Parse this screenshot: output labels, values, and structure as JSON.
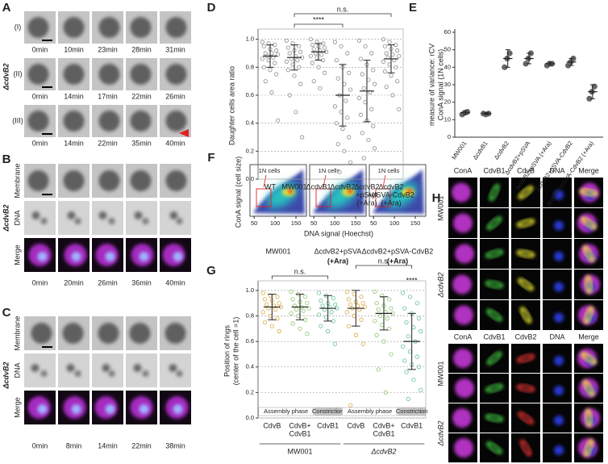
{
  "panels": {
    "A": {
      "label": "A",
      "strain": "ΔcdvB2",
      "rows": [
        {
          "label": "(I)",
          "times": [
            "0min",
            "10min",
            "23min",
            "28min",
            "31min"
          ]
        },
        {
          "label": "(II)",
          "times": [
            "0min",
            "14min",
            "17min",
            "22min",
            "26min"
          ]
        },
        {
          "label": "(III)",
          "times": [
            "0min",
            "14min",
            "22min",
            "35min",
            "40min"
          ]
        }
      ]
    },
    "B": {
      "label": "B",
      "strain": "ΔcdvB2",
      "channels": [
        "Membrane",
        "DNA",
        "Merge"
      ],
      "times": [
        "0min",
        "20min",
        "26min",
        "36min",
        "40min"
      ]
    },
    "C": {
      "label": "C",
      "strain": "ΔcdvB2",
      "channels": [
        "Membrane",
        "DNA",
        "Merge"
      ],
      "times": [
        "0min",
        "8min",
        "14min",
        "22min",
        "38min"
      ]
    },
    "F": {
      "label": "F",
      "ylabel": "ConA signal (cell size)",
      "xlabel": "DNA signal (Hoechst)",
      "xlim": [
        40,
        175
      ],
      "xticks": [
        50,
        100,
        150
      ],
      "gate_label": "1N cells",
      "plots": [
        {
          "name": "MW001"
        },
        {
          "name": "ΔcdvB2+pSVA",
          "note": "(+Ara)"
        },
        {
          "name": "ΔcdvB2+pSVA-CdvB2",
          "note": "(+Ara)"
        }
      ]
    },
    "H": {
      "label": "H",
      "blocks": [
        {
          "channels": [
            "ConA",
            "CdvB1",
            "CdvB",
            "DNA",
            "Merge"
          ],
          "groups": [
            "MW001",
            "ΔcdvB2"
          ]
        },
        {
          "channels": [
            "ConA",
            "CdvB1",
            "CdvB2",
            "DNA",
            "Merge"
          ],
          "groups": [
            "MW001",
            "ΔcdvB2"
          ]
        }
      ]
    }
  },
  "chart_data": [
    {
      "panel": "D",
      "type": "dot",
      "ylabel": "Daughter cells area ratio",
      "marker": "hollow",
      "color": "#8a8a8a",
      "grid": true,
      "categories": [
        [
          "WT"
        ],
        [
          "MW001"
        ],
        [
          "ΔcdvB1"
        ],
        [
          "ΔcdvB2"
        ],
        [
          "ΔcdvB2",
          "+pSVA",
          "(+Ara)"
        ],
        [
          "ΔcdvB2",
          "+pSVA-CdvB2",
          "(+Ara)"
        ]
      ],
      "values": [
        [
          0.98,
          0.97,
          0.96,
          0.95,
          0.93,
          0.92,
          0.9,
          0.9,
          0.89,
          0.88,
          0.87,
          0.86,
          0.85,
          0.83,
          0.8,
          0.78,
          0.75,
          0.7,
          0.62,
          0.42
        ],
        [
          0.99,
          0.97,
          0.95,
          0.94,
          0.92,
          0.91,
          0.9,
          0.88,
          0.87,
          0.86,
          0.85,
          0.84,
          0.82,
          0.8,
          0.78,
          0.74,
          0.68,
          0.6,
          0.48,
          0.3
        ],
        [
          1.0,
          0.98,
          0.97,
          0.96,
          0.95,
          0.94,
          0.93,
          0.92,
          0.91,
          0.9,
          0.89,
          0.88,
          0.87,
          0.85,
          0.83,
          0.8,
          0.76,
          0.7,
          0.65
        ],
        [
          0.98,
          0.95,
          0.9,
          0.85,
          0.8,
          0.76,
          0.72,
          0.68,
          0.64,
          0.6,
          0.56,
          0.52,
          0.48,
          0.44,
          0.4,
          0.36,
          0.3,
          0.25,
          0.2,
          0.12,
          0.05
        ],
        [
          0.99,
          0.95,
          0.9,
          0.86,
          0.82,
          0.78,
          0.75,
          0.71,
          0.68,
          0.65,
          0.62,
          0.58,
          0.55,
          0.5,
          0.46,
          0.42,
          0.38,
          0.33,
          0.28,
          0.22,
          0.15
        ],
        [
          1.0,
          0.98,
          0.96,
          0.95,
          0.93,
          0.92,
          0.9,
          0.89,
          0.88,
          0.87,
          0.85,
          0.84,
          0.82,
          0.8,
          0.77,
          0.74,
          0.7,
          0.66,
          0.6,
          0.5
        ]
      ],
      "means": [
        0.88,
        0.87,
        0.91,
        0.6,
        0.63,
        0.86
      ],
      "errors": [
        0.08,
        0.09,
        0.06,
        0.22,
        0.22,
        0.1
      ],
      "ylim": [
        0,
        1.05
      ],
      "yticks": [
        {
          "value": 0,
          "label": "0.0"
        },
        {
          "value": 0.2,
          "label": "0.2"
        },
        {
          "value": 0.4,
          "label": "0.4"
        },
        {
          "value": 0.6,
          "label": "0.6"
        },
        {
          "value": 0.8,
          "label": "0.8"
        },
        {
          "value": 1,
          "label": "1.0"
        }
      ],
      "brackets": [
        {
          "label": "****",
          "between": [
            1,
            3
          ]
        },
        {
          "label": "n.s.",
          "between": [
            1,
            5
          ]
        }
      ]
    },
    {
      "panel": "E",
      "type": "dot",
      "ylabel": [
        "measure of variance: rCV",
        "ConA signal (1N cells)"
      ],
      "marker": "filled",
      "color": "#666666",
      "grid": false,
      "rotate_labels": true,
      "categories": [
        [
          "MW001"
        ],
        [
          "ΔcdvB1"
        ],
        [
          "ΔcdvB2"
        ],
        [
          "ΔcdvB2+pSVA"
        ],
        [
          "ΔcdvB2+pSVA (+Ara)"
        ],
        [
          "ΔcdvB2+pSVA-CdvB2"
        ],
        [
          "ΔcdvB2+pSVA-CdvB2 (+Ara)"
        ]
      ],
      "values": [
        [
          13,
          14,
          14.5
        ],
        [
          13.5,
          13,
          13.5
        ],
        [
          40,
          45,
          48
        ],
        [
          42,
          45,
          48
        ],
        [
          41,
          42,
          42
        ],
        [
          41,
          43,
          45
        ],
        [
          22,
          26,
          29
        ]
      ],
      "means": [
        14,
        13.5,
        45,
        45,
        42,
        43,
        26
      ],
      "errors": [
        1,
        0.5,
        5,
        3,
        1,
        2,
        4
      ],
      "ylim": [
        0,
        60
      ],
      "yticks": [
        0,
        10,
        20,
        30,
        40,
        50,
        60
      ]
    },
    {
      "panel": "G",
      "type": "dot",
      "ylabel": [
        "Position of rings",
        "(center of the cell =1)"
      ],
      "marker": "hollow",
      "grid": true,
      "colors": [
        "#d9a93c",
        "#8cc46c",
        "#5fbf95",
        "#d9a93c",
        "#8cc46c",
        "#5fbf95"
      ],
      "categories": [
        [
          "CdvB"
        ],
        [
          "CdvB+",
          "CdvB1"
        ],
        [
          "CdvB1"
        ],
        [
          "CdvB"
        ],
        [
          "CdvB+",
          "CdvB1"
        ],
        [
          "CdvB1"
        ]
      ],
      "values": [
        [
          0.98,
          0.96,
          0.95,
          0.93,
          0.92,
          0.9,
          0.89,
          0.88,
          0.87,
          0.86,
          0.85,
          0.83,
          0.8,
          0.78,
          0.75,
          0.72,
          0.68
        ],
        [
          0.99,
          0.97,
          0.95,
          0.93,
          0.91,
          0.9,
          0.88,
          0.87,
          0.86,
          0.85,
          0.84,
          0.82,
          0.8,
          0.77,
          0.74,
          0.7,
          0.66
        ],
        [
          0.98,
          0.96,
          0.94,
          0.92,
          0.9,
          0.89,
          0.88,
          0.87,
          0.86,
          0.85,
          0.83,
          0.81,
          0.79,
          0.76,
          0.72,
          0.68,
          0.58
        ],
        [
          0.99,
          0.97,
          0.95,
          0.93,
          0.91,
          0.9,
          0.89,
          0.88,
          0.87,
          0.86,
          0.85,
          0.83,
          0.8,
          0.77,
          0.72,
          0.65,
          0.58,
          0.1
        ],
        [
          0.99,
          0.96,
          0.93,
          0.9,
          0.88,
          0.86,
          0.85,
          0.83,
          0.82,
          0.8,
          0.78,
          0.76,
          0.73,
          0.7,
          0.65,
          0.6,
          0.5,
          0.38,
          0.2
        ],
        [
          0.98,
          0.95,
          0.9,
          0.86,
          0.82,
          0.78,
          0.75,
          0.71,
          0.68,
          0.64,
          0.6,
          0.56,
          0.52,
          0.48,
          0.45,
          0.42,
          0.4,
          0.36,
          0.3,
          0.22,
          0.15
        ]
      ],
      "means": [
        0.87,
        0.87,
        0.86,
        0.86,
        0.82,
        0.6
      ],
      "errors": [
        0.1,
        0.1,
        0.1,
        0.14,
        0.13,
        0.22
      ],
      "ylim": [
        0,
        1.05
      ],
      "yticks": [
        {
          "value": 0,
          "label": "0.0"
        },
        {
          "value": 0.2,
          "label": "0.2"
        },
        {
          "value": 0.4,
          "label": "0.4"
        },
        {
          "value": 0.6,
          "label": "0.6"
        },
        {
          "value": 0.8,
          "label": "0.8"
        },
        {
          "value": 1,
          "label": "1.0"
        }
      ],
      "brackets": [
        {
          "label": "n.s.",
          "between": [
            0,
            2
          ]
        },
        {
          "label": "n.s.",
          "between": [
            3,
            5
          ]
        },
        {
          "label": "****",
          "between": [
            5,
            5
          ]
        }
      ],
      "phases": [
        {
          "label": "Assembly phase",
          "between": [
            0,
            1
          ],
          "filled": false
        },
        {
          "label": "Constriction",
          "between": [
            2,
            2
          ],
          "filled": true
        },
        {
          "label": "Assembly phase",
          "between": [
            3,
            4
          ],
          "filled": false
        },
        {
          "label": "Constriction",
          "between": [
            5,
            5
          ],
          "filled": true
        }
      ],
      "groups": [
        {
          "label": "MW001",
          "between": [
            0,
            2
          ]
        },
        {
          "label": "ΔcdvB2",
          "between": [
            3,
            5
          ]
        }
      ]
    }
  ]
}
